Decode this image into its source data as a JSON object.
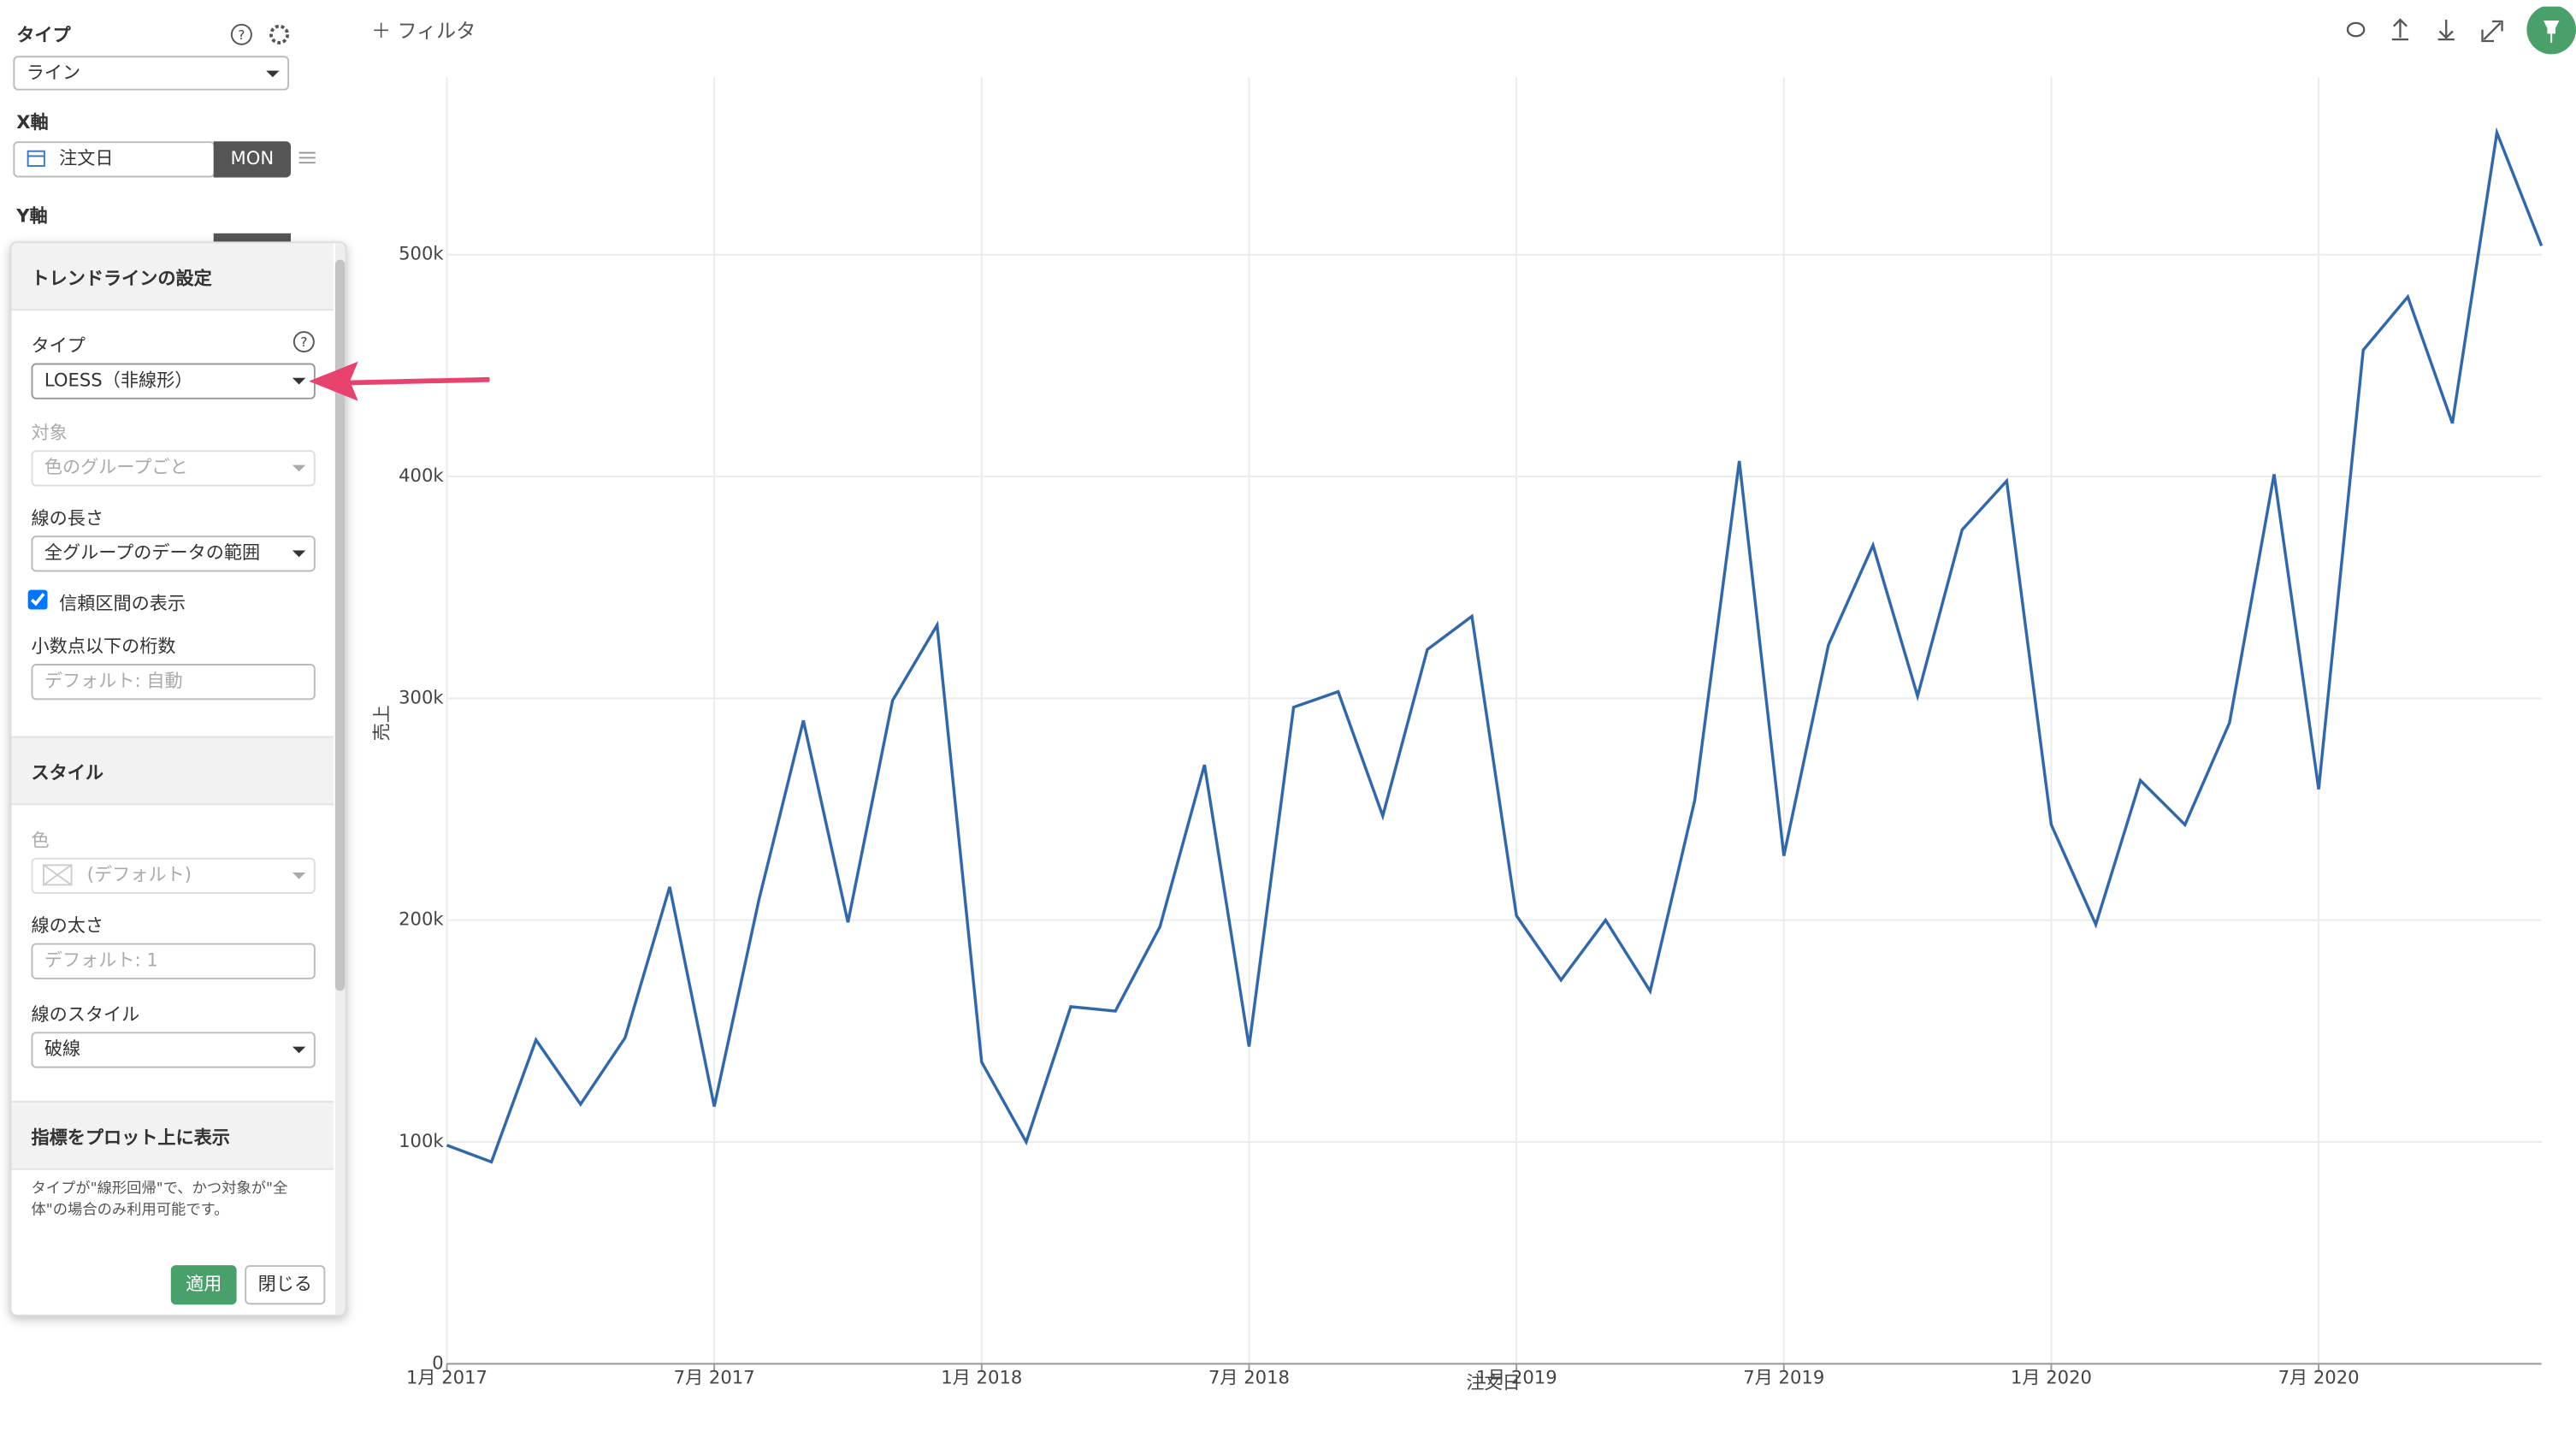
{
  "toolbar": {
    "filter": "フィルタ"
  },
  "sidebar": {
    "type_label": "タイプ",
    "type_value": "ライン",
    "x_axis_label": "X軸",
    "x_axis_field": "注文日",
    "x_axis_unit": "MON",
    "y_axis_label": "Y軸"
  },
  "trend_panel": {
    "title": "トレンドラインの設定",
    "type_label": "タイプ",
    "type_value": "LOESS（非線形）",
    "target_label": "対象",
    "target_value": "色のグループごと",
    "length_label": "線の長さ",
    "length_value": "全グループのデータの範囲",
    "ci_label": "信頼区間の表示",
    "digits_label": "小数点以下の桁数",
    "digits_placeholder": "デフォルト: 自動",
    "style_title": "スタイル",
    "color_label": "色",
    "color_value": "(デフォルト)",
    "width_label": "線の太さ",
    "width_placeholder": "デフォルト: 1",
    "linestyle_label": "線のスタイル",
    "linestyle_value": "破線",
    "metrics_title": "指標をプロット上に表示",
    "metrics_note": "タイプが\"線形回帰\"で、かつ対象が\"全体\"の場合のみ利用可能です。",
    "apply": "適用",
    "close": "閉じる"
  },
  "chart_data": {
    "type": "line",
    "x_label": "注文日",
    "y_label": "売上",
    "color": "#3268a8",
    "grid": true,
    "x": [
      "2017-01",
      "2017-02",
      "2017-03",
      "2017-04",
      "2017-05",
      "2017-06",
      "2017-07",
      "2017-08",
      "2017-09",
      "2017-10",
      "2017-11",
      "2017-12",
      "2018-01",
      "2018-02",
      "2018-03",
      "2018-04",
      "2018-05",
      "2018-06",
      "2018-07",
      "2018-08",
      "2018-09",
      "2018-10",
      "2018-11",
      "2018-12",
      "2019-01",
      "2019-02",
      "2019-03",
      "2019-04",
      "2019-05",
      "2019-06",
      "2019-07",
      "2019-08",
      "2019-09",
      "2019-10",
      "2019-11",
      "2019-12",
      "2020-01",
      "2020-02",
      "2020-03",
      "2020-04",
      "2020-05",
      "2020-06",
      "2020-07",
      "2020-08",
      "2020-09",
      "2020-10",
      "2020-11",
      "2020-12"
    ],
    "values": [
      98500,
      91000,
      146000,
      117000,
      147000,
      215000,
      116000,
      209000,
      290000,
      199000,
      299000,
      333000,
      136000,
      100000,
      161000,
      159000,
      197000,
      270000,
      143000,
      296000,
      303000,
      247000,
      322000,
      337000,
      202000,
      173000,
      200000,
      168000,
      254000,
      407000,
      229000,
      324000,
      369000,
      301000,
      376000,
      398000,
      243000,
      198000,
      263000,
      243000,
      289000,
      401000,
      259000,
      457000,
      481000,
      424000,
      555000,
      504000
    ],
    "ylim": [
      0,
      580000
    ],
    "yticks": [
      0,
      {
        "value": 100000,
        "label": "100k"
      },
      {
        "value": 200000,
        "label": "200k"
      },
      {
        "value": 300000,
        "label": "300k"
      },
      {
        "value": 400000,
        "label": "400k"
      },
      {
        "value": 500000,
        "label": "500k"
      }
    ],
    "xticks": [
      {
        "value": "2017-01",
        "label": "1月 2017"
      },
      {
        "value": "2017-07",
        "label": "7月 2017"
      },
      {
        "value": "2018-01",
        "label": "1月 2018"
      },
      {
        "value": "2018-07",
        "label": "7月 2018"
      },
      {
        "value": "2019-01",
        "label": "1月 2019"
      },
      {
        "value": "2019-07",
        "label": "7月 2019"
      },
      {
        "value": "2020-01",
        "label": "1月 2020"
      },
      {
        "value": "2020-07",
        "label": "7月 2020"
      }
    ]
  }
}
